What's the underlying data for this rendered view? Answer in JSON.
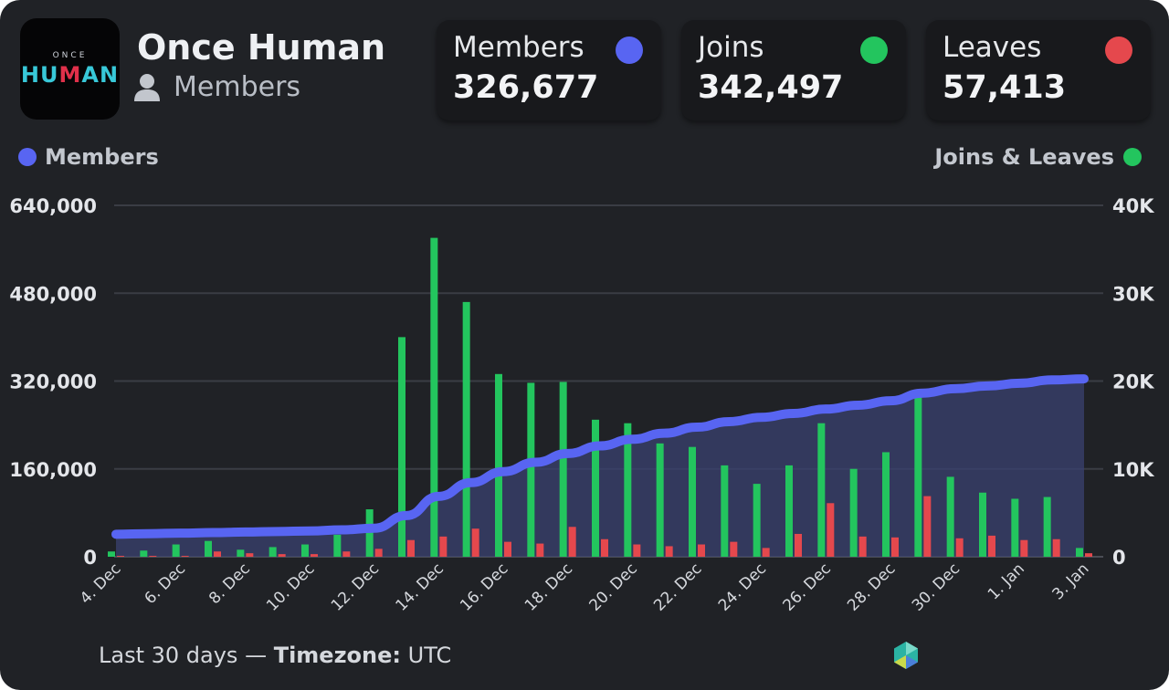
{
  "header": {
    "server_name": "Once Human",
    "subtitle": "Members"
  },
  "stats": [
    {
      "label": "Members",
      "value": "326,677",
      "color": "#5865f2"
    },
    {
      "label": "Joins",
      "value": "342,497",
      "color": "#23c55e"
    },
    {
      "label": "Leaves",
      "value": "57,413",
      "color": "#e5484d"
    }
  ],
  "legend": {
    "left": "Members",
    "right": "Joins & Leaves"
  },
  "footer": {
    "lead": "Last 30 days — ",
    "tz_label": "Timezone:",
    "tz_value": " UTC"
  },
  "colors": {
    "members": "#5865f2",
    "joins": "#23c55e",
    "leaves": "#e5484d",
    "area": "#3a4170"
  },
  "chart_data": {
    "type": "bar",
    "x": [
      "4. Dec",
      "5. Dec",
      "6. Dec",
      "7. Dec",
      "8. Dec",
      "9. Dec",
      "10. Dec",
      "11. Dec",
      "12. Dec",
      "13. Dec",
      "14. Dec",
      "15. Dec",
      "16. Dec",
      "17. Dec",
      "18. Dec",
      "19. Dec",
      "20. Dec",
      "21. Dec",
      "22. Dec",
      "23. Dec",
      "24. Dec",
      "25. Dec",
      "26. Dec",
      "27. Dec",
      "28. Dec",
      "29. Dec",
      "30. Dec",
      "31. Dec",
      "1. Jan",
      "2. Jan",
      "3. Jan"
    ],
    "tick_labels": [
      "4. Dec",
      "6. Dec",
      "8. Dec",
      "10. Dec",
      "12. Dec",
      "14. Dec",
      "16. Dec",
      "18. Dec",
      "20. Dec",
      "22. Dec",
      "24. Dec",
      "26. Dec",
      "28. Dec",
      "30. Dec",
      "1. Jan",
      "3. Jan"
    ],
    "series": [
      {
        "name": "Members",
        "axis": "left",
        "render": "area-line",
        "values": [
          41000,
          42000,
          43000,
          44000,
          45000,
          46000,
          47000,
          49000,
          52000,
          75000,
          110000,
          135000,
          155000,
          172000,
          188000,
          202000,
          214000,
          225000,
          236000,
          246000,
          254000,
          261000,
          269000,
          276000,
          284000,
          298000,
          306000,
          311000,
          316000,
          322000,
          324000
        ]
      },
      {
        "name": "Joins",
        "axis": "right",
        "render": "bar",
        "values": [
          600,
          700,
          1400,
          1800,
          800,
          1100,
          1400,
          2500,
          5400,
          25000,
          36300,
          29000,
          20800,
          19800,
          19900,
          15600,
          15200,
          12900,
          12500,
          10400,
          8300,
          10400,
          15200,
          10000,
          11900,
          18900,
          9100,
          7300,
          6600,
          6800,
          1000
        ]
      },
      {
        "name": "Leaves",
        "axis": "right",
        "render": "bar",
        "values": [
          100,
          100,
          100,
          600,
          400,
          300,
          300,
          600,
          900,
          1900,
          2300,
          3200,
          1700,
          1500,
          3400,
          2000,
          1400,
          1200,
          1400,
          1700,
          1000,
          2600,
          6100,
          2300,
          2200,
          6900,
          2100,
          2400,
          1900,
          2000,
          400
        ]
      }
    ],
    "yLeft": {
      "min": 0,
      "max": 640000,
      "ticks": [
        "0",
        "160,000",
        "320,000",
        "480,000",
        "640,000"
      ]
    },
    "yRight": {
      "min": 0,
      "max": 40000,
      "ticks": [
        "0",
        "10K",
        "20K",
        "30K",
        "40K"
      ]
    },
    "grid": true,
    "legend": "top"
  }
}
